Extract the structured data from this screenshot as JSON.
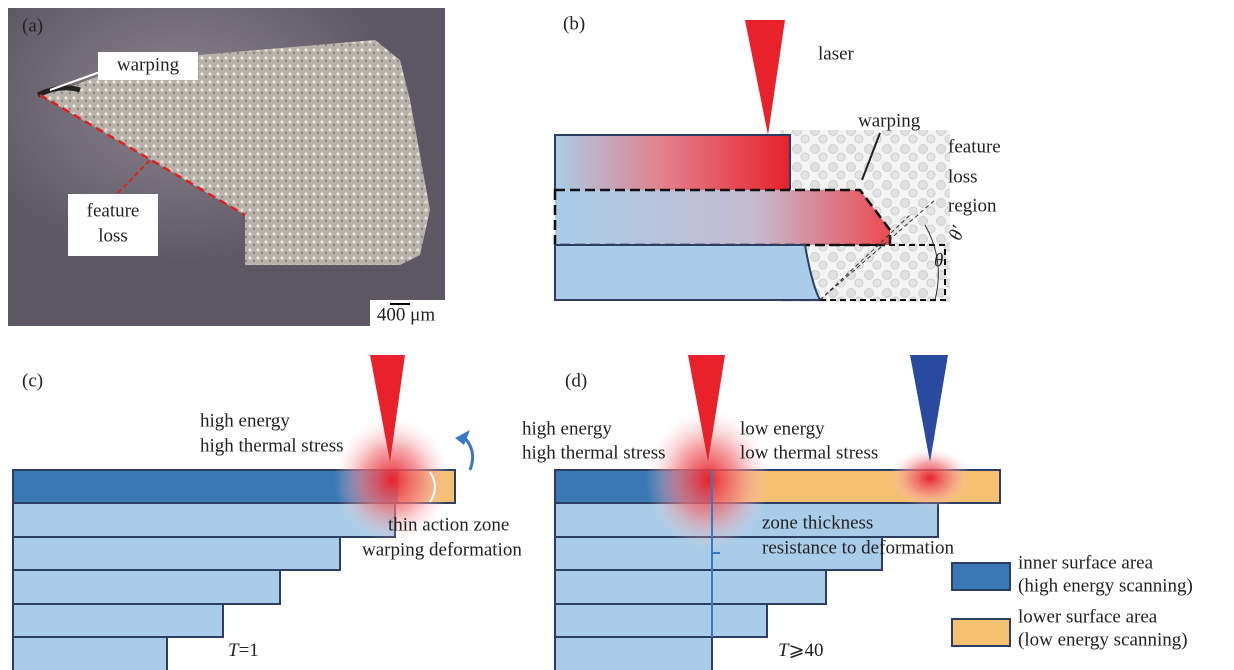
{
  "panel_a": {
    "label": "(a)",
    "warping": "warping",
    "feature_loss": [
      "feature",
      "loss"
    ],
    "scale_bar": "400 μm"
  },
  "panel_b": {
    "label": "(b)",
    "laser": "laser",
    "warping": "warping",
    "feature_loss_region": [
      "feature",
      "loss",
      "region"
    ],
    "angles": [
      "θ",
      "θ′"
    ]
  },
  "panel_c": {
    "label": "(c)",
    "laser_note": [
      "high energy",
      "high thermal stress"
    ],
    "zone_note": [
      "thin action zone",
      "warping deformation"
    ],
    "layer_count": [
      "T",
      "=1"
    ]
  },
  "panel_d": {
    "label": "(d)",
    "high_note": [
      "high energy",
      "high thermal stress"
    ],
    "low_note": [
      "low energy",
      "low thermal stress"
    ],
    "zone_note": [
      "zone thickness",
      "resistance to deformation"
    ],
    "layer_count": [
      "T",
      "⩾40"
    ]
  },
  "legend": [
    {
      "lines": [
        "inner surface area",
        "(high energy scanning)"
      ]
    },
    {
      "lines": [
        "lower surface area",
        "(low energy scanning)"
      ]
    }
  ]
}
